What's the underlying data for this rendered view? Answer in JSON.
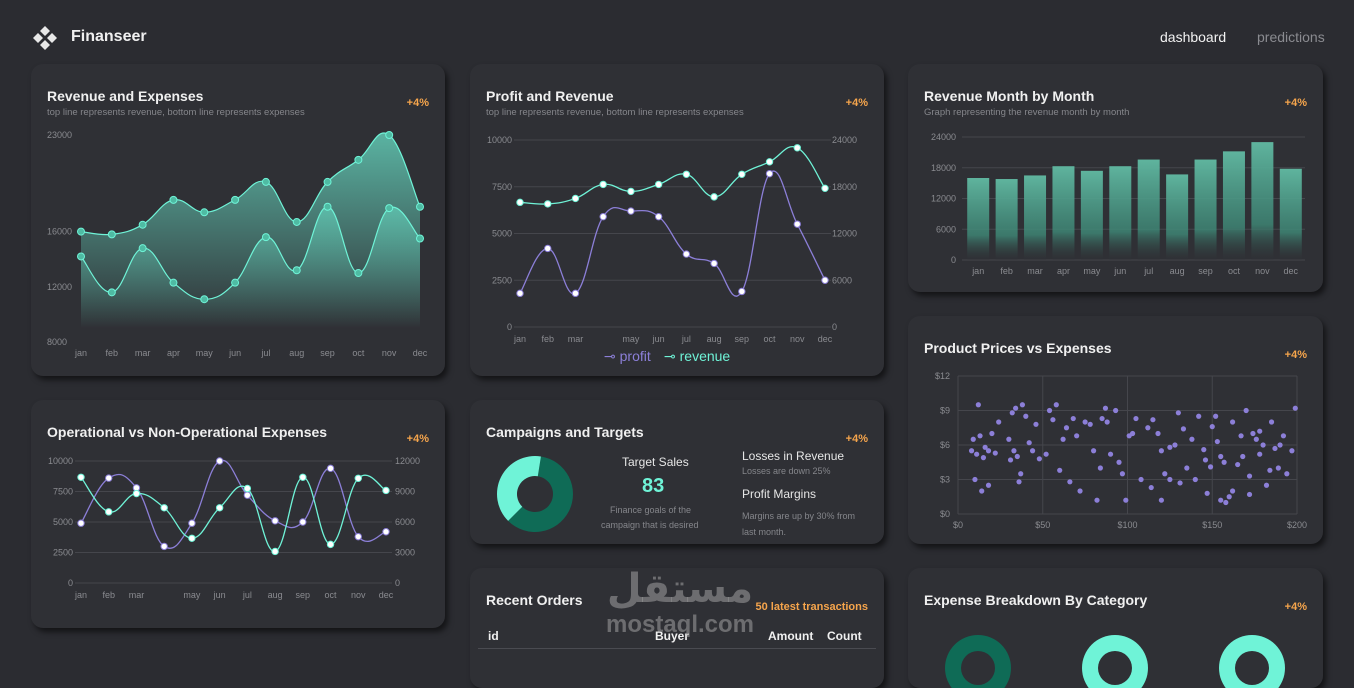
{
  "app": {
    "brand": "Finanseer",
    "nav": {
      "dashboard": "dashboard",
      "predictions": "predictions"
    }
  },
  "colors": {
    "accent": "#6ff3d7",
    "purple": "#8c7fd8",
    "orange": "#f6a54c",
    "card": "#2f3035",
    "background": "#2b2c31"
  },
  "cards": {
    "revenue_expenses": {
      "title": "Revenue and Expenses",
      "subtitle": "top line represents revenue, bottom line represents expenses",
      "badge": "+4%"
    },
    "profit_revenue": {
      "title": "Profit and Revenue",
      "subtitle": "top line represents revenue, bottom line represents expenses",
      "badge": "+4%",
      "legend_profit": "profit",
      "legend_revenue": "revenue"
    },
    "revenue_month": {
      "title": "Revenue Month by Month",
      "subtitle": "Graph representing the revenue month by month",
      "badge": "+4%"
    },
    "operational": {
      "title": "Operational vs Non-Operational Expenses",
      "badge": "+4%"
    },
    "campaigns": {
      "title": "Campaigns and Targets",
      "badge": "+4%",
      "target_label": "Target Sales",
      "target_value": "83",
      "target_desc_1": "Finance goals of the",
      "target_desc_2": "campaign that is desired",
      "losses_label": "Losses in Revenue",
      "losses_desc": "Losses are down 25%",
      "margins_label": "Profit Margins",
      "margins_desc_1": "Margins are up by 30% from",
      "margins_desc_2": "last month.",
      "donut": [
        {
          "value": 60,
          "color": "#0f6b56"
        },
        {
          "value": 40,
          "color": "#6ff3d7"
        }
      ]
    },
    "product_prices": {
      "title": "Product Prices vs Expenses",
      "badge": "+4%"
    },
    "recent_orders": {
      "title": "Recent Orders",
      "badge": "50 latest transactions",
      "columns": [
        "id",
        "Buyer",
        "Amount",
        "Count"
      ]
    },
    "expense_breakdown": {
      "title": "Expense Breakdown By Category",
      "badge": "+4%"
    }
  },
  "watermark": {
    "arabic": "مستقل",
    "latin": "mostaql.com"
  },
  "chart_data": [
    {
      "id": "revenue_expenses",
      "type": "area",
      "categories": [
        "jan",
        "feb",
        "mar",
        "apr",
        "may",
        "jun",
        "jul",
        "aug",
        "sep",
        "oct",
        "nov",
        "dec"
      ],
      "ylim": [
        8000,
        23000
      ],
      "yticks": [
        "8000",
        "12000",
        "16000",
        "23000"
      ],
      "series": [
        {
          "values": [
            16000,
            15800,
            16500,
            18300,
            17400,
            18300,
            19600,
            16700,
            19600,
            21200,
            23000,
            17800
          ]
        },
        {
          "values": [
            14200,
            11600,
            14800,
            12300,
            11100,
            12300,
            15600,
            13200,
            17800,
            13000,
            17700,
            15500
          ]
        }
      ]
    },
    {
      "id": "profit_revenue",
      "type": "line",
      "categories": [
        "jan",
        "feb",
        "mar",
        "apr",
        "may",
        "jun",
        "jul",
        "aug",
        "sep",
        "oct",
        "nov",
        "dec"
      ],
      "xtick_labels": [
        "jan",
        "feb",
        "mar",
        "",
        "may",
        "jun",
        "jul",
        "aug",
        "sep",
        "oct",
        "nov",
        "dec"
      ],
      "ylim_left": [
        0,
        10000
      ],
      "yticks_left": [
        "0",
        "2500",
        "5000",
        "7500",
        "10000"
      ],
      "ylim_right": [
        0,
        24000
      ],
      "yticks_right": [
        "0",
        "6000",
        "12000",
        "18000",
        "24000"
      ],
      "series": [
        {
          "name": "profit",
          "axis": "left",
          "values": [
            1800,
            4200,
            1800,
            5900,
            6200,
            5900,
            3900,
            3400,
            1900,
            8200,
            5500,
            2500
          ]
        },
        {
          "name": "revenue",
          "axis": "right",
          "values": [
            16000,
            15800,
            16500,
            18300,
            17400,
            18300,
            19600,
            16700,
            19600,
            21200,
            23000,
            17800
          ]
        }
      ]
    },
    {
      "id": "revenue_month",
      "type": "bar",
      "categories": [
        "jan",
        "feb",
        "mar",
        "apr",
        "may",
        "jun",
        "jul",
        "aug",
        "sep",
        "oct",
        "nov",
        "dec"
      ],
      "ylim": [
        0,
        24000
      ],
      "yticks": [
        "0",
        "6000",
        "12000",
        "18000",
        "24000"
      ],
      "values": [
        16000,
        15800,
        16500,
        18300,
        17400,
        18300,
        19600,
        16700,
        19600,
        21200,
        23000,
        17800
      ]
    },
    {
      "id": "operational",
      "type": "line",
      "categories": [
        "jan",
        "feb",
        "mar",
        "apr",
        "may",
        "jun",
        "jul",
        "aug",
        "sep",
        "oct",
        "nov",
        "dec"
      ],
      "xtick_labels": [
        "jan",
        "feb",
        "mar",
        "",
        "may",
        "jun",
        "jul",
        "aug",
        "sep",
        "oct",
        "nov",
        "dec"
      ],
      "ylim_left": [
        0,
        10000
      ],
      "yticks_left": [
        "0",
        "2500",
        "5000",
        "7500",
        "10000"
      ],
      "ylim_right": [
        0,
        12000
      ],
      "yticks_right": [
        "0",
        "3000",
        "6000",
        "9000",
        "12000"
      ],
      "series": [
        {
          "axis": "left",
          "values": [
            4900,
            8600,
            7800,
            3000,
            4900,
            10000,
            7200,
            5100,
            5000,
            9400,
            3800,
            4200
          ]
        },
        {
          "axis": "right",
          "values": [
            10400,
            7000,
            8800,
            7400,
            4400,
            7400,
            9300,
            3100,
            10400,
            3800,
            10300,
            9100
          ]
        }
      ]
    },
    {
      "id": "product_prices",
      "type": "scatter",
      "xlim": [
        0,
        200
      ],
      "ylim": [
        0,
        12
      ],
      "xticks": [
        "$0",
        "$50",
        "$100",
        "$150",
        "$200"
      ],
      "yticks": [
        "$0",
        "$3",
        "$6",
        "$9",
        "$12"
      ],
      "points": [
        [
          12,
          9.5
        ],
        [
          13,
          6.8
        ],
        [
          15,
          4.9
        ],
        [
          16,
          5.8
        ],
        [
          18,
          5.5
        ],
        [
          20,
          7.0
        ],
        [
          22,
          5.3
        ],
        [
          24,
          8.0
        ],
        [
          8,
          5.5
        ],
        [
          10,
          3.0
        ],
        [
          14,
          2.0
        ],
        [
          18,
          2.5
        ],
        [
          9,
          6.5
        ],
        [
          11,
          5.2
        ],
        [
          30,
          6.5
        ],
        [
          32,
          8.8
        ],
        [
          34,
          9.2
        ],
        [
          35,
          5.0
        ],
        [
          36,
          2.8
        ],
        [
          38,
          9.5
        ],
        [
          40,
          8.5
        ],
        [
          42,
          6.2
        ],
        [
          44,
          5.5
        ],
        [
          46,
          7.8
        ],
        [
          48,
          4.8
        ],
        [
          33,
          5.5
        ],
        [
          37,
          3.5
        ],
        [
          31,
          4.7
        ],
        [
          52,
          5.2
        ],
        [
          54,
          9.0
        ],
        [
          56,
          8.2
        ],
        [
          58,
          9.5
        ],
        [
          60,
          3.8
        ],
        [
          62,
          6.5
        ],
        [
          64,
          7.5
        ],
        [
          66,
          2.8
        ],
        [
          68,
          8.3
        ],
        [
          70,
          6.8
        ],
        [
          72,
          2.0
        ],
        [
          75,
          8.0
        ],
        [
          78,
          7.8
        ],
        [
          80,
          5.5
        ],
        [
          82,
          1.2
        ],
        [
          84,
          4.0
        ],
        [
          85,
          8.3
        ],
        [
          87,
          9.2
        ],
        [
          88,
          8.0
        ],
        [
          90,
          5.2
        ],
        [
          93,
          9.0
        ],
        [
          95,
          4.5
        ],
        [
          97,
          3.5
        ],
        [
          99,
          1.2
        ],
        [
          101,
          6.8
        ],
        [
          103,
          7.0
        ],
        [
          108,
          3.0
        ],
        [
          112,
          7.5
        ],
        [
          115,
          8.2
        ],
        [
          118,
          7.0
        ],
        [
          120,
          5.5
        ],
        [
          122,
          3.5
        ],
        [
          125,
          5.8
        ],
        [
          128,
          6.0
        ],
        [
          130,
          8.8
        ],
        [
          131,
          2.7
        ],
        [
          133,
          7.4
        ],
        [
          135,
          4.0
        ],
        [
          138,
          6.5
        ],
        [
          140,
          3.0
        ],
        [
          142,
          8.5
        ],
        [
          145,
          5.6
        ],
        [
          147,
          1.8
        ],
        [
          150,
          7.6
        ],
        [
          152,
          8.5
        ],
        [
          153,
          6.3
        ],
        [
          155,
          5.0
        ],
        [
          157,
          4.5
        ],
        [
          160,
          1.5
        ],
        [
          162,
          8.0
        ],
        [
          165,
          4.3
        ],
        [
          167,
          6.8
        ],
        [
          170,
          9.0
        ],
        [
          172,
          3.3
        ],
        [
          174,
          7.0
        ],
        [
          176,
          6.5
        ],
        [
          178,
          5.2
        ],
        [
          180,
          6.0
        ],
        [
          182,
          2.5
        ],
        [
          185,
          8.0
        ],
        [
          187,
          5.7
        ],
        [
          189,
          4.0
        ],
        [
          192,
          6.8
        ],
        [
          194,
          3.5
        ],
        [
          197,
          5.5
        ],
        [
          199,
          9.2
        ],
        [
          146,
          4.7
        ],
        [
          149,
          4.1
        ],
        [
          155,
          1.2
        ],
        [
          158,
          1.0
        ],
        [
          162,
          2.0
        ],
        [
          168,
          5.0
        ],
        [
          172,
          1.7
        ],
        [
          178,
          7.2
        ],
        [
          184,
          3.8
        ],
        [
          190,
          6.0
        ],
        [
          114,
          2.3
        ],
        [
          120,
          1.2
        ],
        [
          125,
          3.0
        ],
        [
          105,
          8.3
        ]
      ]
    },
    {
      "id": "expense_breakdown",
      "type": "pie",
      "note": "partially visible donuts",
      "colors": [
        "#0f6b56",
        "#6ff3d7",
        "#6ff3d7"
      ]
    }
  ]
}
